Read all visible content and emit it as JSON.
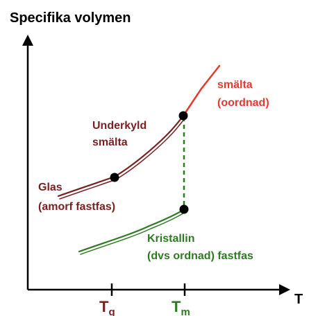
{
  "diagram": {
    "y_axis_label": "Specifika volymen",
    "x_axis_label": "T",
    "ticks": [
      {
        "main": "T",
        "sub": "g"
      },
      {
        "main": "T",
        "sub": "m"
      }
    ],
    "labels": {
      "melt_line1": "smälta",
      "melt_line2": "(oordnad)",
      "undercooled_line1": "Underkyld",
      "undercooled_line2": "smälta",
      "glass_line1": "Glas",
      "glass_line2": "(amorf fastfas)",
      "crystal_line1": "Kristallin",
      "crystal_line2": "(dvs ordnad) fastfas"
    },
    "colors": {
      "axis": "#000000",
      "melt": "#e8392f",
      "undercooled": "#7a1f1f",
      "crystal": "#2e7a22",
      "point": "#000000"
    }
  }
}
